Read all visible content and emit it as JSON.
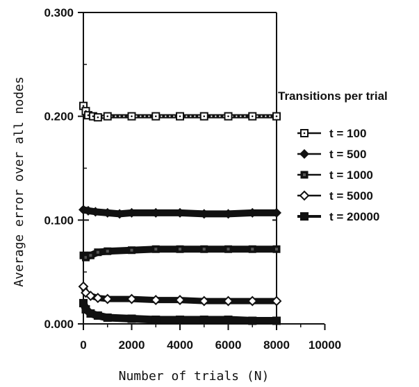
{
  "chart_data": {
    "type": "line",
    "title": "",
    "xlabel": "Number of trials (N)",
    "ylabel": "Average error over all nodes",
    "xlim": [
      0,
      10000
    ],
    "ylim": [
      0,
      0.3
    ],
    "x_ticks": [
      0,
      2000,
      4000,
      6000,
      8000,
      10000
    ],
    "x_tick_labels": [
      "0",
      "2000",
      "4000",
      "6000",
      "8000",
      "10000"
    ],
    "y_ticks": [
      0,
      0.1,
      0.2,
      0.3
    ],
    "y_tick_labels": [
      "0.000",
      "0.100",
      "0.200",
      "0.300"
    ],
    "grid": false,
    "legend_title": "Transitions per trial",
    "legend_position": "right",
    "series": [
      {
        "name": "t = 100",
        "marker": "open-square-dot",
        "x": [
          0,
          100,
          200,
          400,
          600,
          1000,
          2000,
          3000,
          4000,
          5000,
          6000,
          7000,
          8000
        ],
        "y": [
          0.21,
          0.205,
          0.201,
          0.2,
          0.199,
          0.2,
          0.2,
          0.2,
          0.2,
          0.2,
          0.2,
          0.2,
          0.2
        ]
      },
      {
        "name": "t = 500",
        "marker": "filled-diamond",
        "x": [
          0,
          200,
          500,
          1000,
          1500,
          2000,
          3000,
          4000,
          5000,
          6000,
          7000,
          8000
        ],
        "y": [
          0.11,
          0.109,
          0.108,
          0.107,
          0.106,
          0.107,
          0.107,
          0.107,
          0.106,
          0.106,
          0.107,
          0.107
        ]
      },
      {
        "name": "t = 1000",
        "marker": "filled-square",
        "x": [
          0,
          100,
          300,
          600,
          1000,
          2000,
          3000,
          4000,
          5000,
          6000,
          7000,
          8000
        ],
        "y": [
          0.066,
          0.064,
          0.066,
          0.069,
          0.07,
          0.071,
          0.072,
          0.072,
          0.072,
          0.072,
          0.072,
          0.072
        ]
      },
      {
        "name": "t = 5000",
        "marker": "open-diamond",
        "x": [
          0,
          100,
          300,
          600,
          1000,
          2000,
          3000,
          4000,
          5000,
          6000,
          7000,
          8000
        ],
        "y": [
          0.036,
          0.03,
          0.027,
          0.025,
          0.024,
          0.024,
          0.023,
          0.023,
          0.022,
          0.022,
          0.022,
          0.022
        ]
      },
      {
        "name": "t = 20000",
        "marker": "filled-square-large",
        "x": [
          0,
          100,
          300,
          600,
          1000,
          2000,
          3000,
          4000,
          5000,
          6000,
          7000,
          8000
        ],
        "y": [
          0.02,
          0.014,
          0.01,
          0.008,
          0.006,
          0.005,
          0.004,
          0.004,
          0.004,
          0.004,
          0.003,
          0.003
        ]
      }
    ]
  }
}
